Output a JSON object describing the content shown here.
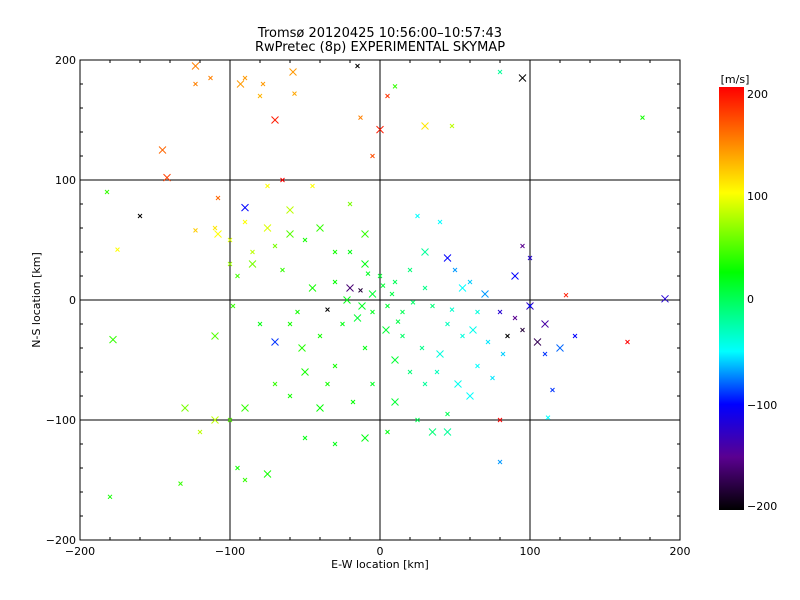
{
  "chart_data": {
    "type": "scatter",
    "title": "Tromsø 20120425 10:56:00–10:57:43",
    "subtitle": "RwPretec (8p) EXPERIMENTAL SKYMAP",
    "xlabel": "E-W location [km]",
    "ylabel": "N-S location [km]",
    "xlim": [
      -200,
      200
    ],
    "ylim": [
      -200,
      200
    ],
    "xticks": [
      -200,
      -100,
      0,
      100,
      200
    ],
    "yticks": [
      -200,
      -100,
      0,
      100,
      200
    ],
    "xtick_labels": [
      "−200",
      "−100",
      "0",
      "100",
      "200"
    ],
    "ytick_labels": [
      "−200",
      "−100",
      "0",
      "100",
      "200"
    ],
    "grid": true,
    "marker": "x",
    "colorbar": {
      "label": "[m/s]",
      "range": [
        -200,
        200
      ],
      "ticks": [
        200,
        100,
        0,
        -100,
        -200
      ],
      "tick_labels": [
        "200",
        "100",
        "0",
        "−100",
        "−200"
      ],
      "stops": [
        {
          "v": -200,
          "color": "#000000"
        },
        {
          "v": -150,
          "color": "#5a0090"
        },
        {
          "v": -100,
          "color": "#0000ff"
        },
        {
          "v": -50,
          "color": "#00ffff"
        },
        {
          "v": 25,
          "color": "#00ff00"
        },
        {
          "v": 100,
          "color": "#ffff00"
        },
        {
          "v": 200,
          "color": "#ff0000"
        }
      ]
    },
    "points_note": "representative sample; columns = [E-W km, N-S km, velocity m/s]",
    "points": [
      [
        -123,
        195,
        150
      ],
      [
        -113,
        185,
        150
      ],
      [
        -123,
        180,
        150
      ],
      [
        -93,
        180,
        140
      ],
      [
        -90,
        185,
        140
      ],
      [
        -78,
        180,
        140
      ],
      [
        -58,
        190,
        140
      ],
      [
        -80,
        170,
        130
      ],
      [
        -57,
        172,
        135
      ],
      [
        -70,
        150,
        190
      ],
      [
        -15,
        195,
        -200
      ],
      [
        -13,
        152,
        150
      ],
      [
        0,
        142,
        190
      ],
      [
        -5,
        120,
        170
      ],
      [
        10,
        178,
        40
      ],
      [
        30,
        145,
        110
      ],
      [
        48,
        145,
        80
      ],
      [
        5,
        170,
        180
      ],
      [
        -142,
        102,
        175
      ],
      [
        -182,
        90,
        40
      ],
      [
        -108,
        85,
        160
      ],
      [
        -90,
        77,
        -100
      ],
      [
        -123,
        58,
        120
      ],
      [
        -110,
        60,
        110
      ],
      [
        -108,
        55,
        100
      ],
      [
        -100,
        50,
        90
      ],
      [
        -85,
        40,
        80
      ],
      [
        -60,
        55,
        50
      ],
      [
        -70,
        45,
        60
      ],
      [
        -50,
        50,
        30
      ],
      [
        -40,
        60,
        40
      ],
      [
        -30,
        40,
        30
      ],
      [
        -20,
        40,
        20
      ],
      [
        -10,
        30,
        20
      ],
      [
        0,
        20,
        10
      ],
      [
        10,
        15,
        0
      ],
      [
        -5,
        5,
        10
      ],
      [
        5,
        -5,
        10
      ],
      [
        15,
        -10,
        0
      ],
      [
        -15,
        -15,
        10
      ],
      [
        -25,
        -20,
        20
      ],
      [
        20,
        25,
        -10
      ],
      [
        30,
        40,
        -20
      ],
      [
        40,
        65,
        -50
      ],
      [
        25,
        70,
        -50
      ],
      [
        45,
        35,
        -100
      ],
      [
        50,
        25,
        -70
      ],
      [
        60,
        15,
        -60
      ],
      [
        70,
        5,
        -70
      ],
      [
        80,
        -10,
        -120
      ],
      [
        90,
        -15,
        -150
      ],
      [
        100,
        -5,
        -130
      ],
      [
        95,
        -25,
        -180
      ],
      [
        85,
        -30,
        -200
      ],
      [
        105,
        -35,
        -170
      ],
      [
        110,
        -45,
        -90
      ],
      [
        115,
        -75,
        -90
      ],
      [
        120,
        -40,
        -80
      ],
      [
        124,
        4,
        190
      ],
      [
        165,
        -35,
        200
      ],
      [
        190,
        1,
        -120
      ],
      [
        175,
        152,
        30
      ],
      [
        80,
        190,
        -20
      ],
      [
        95,
        185,
        -200
      ],
      [
        100,
        -5,
        -100
      ],
      [
        55,
        -30,
        -40
      ],
      [
        40,
        -45,
        -40
      ],
      [
        65,
        -55,
        -50
      ],
      [
        75,
        -65,
        -55
      ],
      [
        60,
        -80,
        -50
      ],
      [
        30,
        -70,
        -20
      ],
      [
        20,
        -60,
        -10
      ],
      [
        10,
        -50,
        10
      ],
      [
        -10,
        -40,
        20
      ],
      [
        -30,
        -55,
        30
      ],
      [
        -50,
        -60,
        30
      ],
      [
        -70,
        -70,
        40
      ],
      [
        -60,
        -80,
        30
      ],
      [
        -90,
        -90,
        40
      ],
      [
        -100,
        -100,
        50
      ],
      [
        -120,
        -110,
        80
      ],
      [
        -130,
        -90,
        60
      ],
      [
        -95,
        -140,
        30
      ],
      [
        -90,
        -150,
        40
      ],
      [
        -75,
        -145,
        30
      ],
      [
        -50,
        -115,
        20
      ],
      [
        -30,
        -120,
        20
      ],
      [
        -10,
        -115,
        20
      ],
      [
        5,
        -110,
        20
      ],
      [
        25,
        -100,
        0
      ],
      [
        45,
        -110,
        -20
      ],
      [
        80,
        -135,
        -70
      ],
      [
        112,
        -98,
        -50
      ],
      [
        -178,
        -33,
        40
      ],
      [
        -180,
        -164,
        30
      ],
      [
        -133,
        -153,
        40
      ],
      [
        -110,
        -100,
        80
      ],
      [
        -160,
        70,
        -200
      ],
      [
        -175,
        42,
        100
      ],
      [
        -145,
        125,
        160
      ],
      [
        -35,
        -8,
        -200
      ],
      [
        -13,
        8,
        -180
      ],
      [
        -70,
        -35,
        -90
      ],
      [
        -98,
        -5,
        40
      ],
      [
        -80,
        -20,
        20
      ],
      [
        -110,
        -30,
        50
      ],
      [
        -40,
        -30,
        30
      ],
      [
        -60,
        -20,
        30
      ],
      [
        90,
        20,
        -100
      ],
      [
        95,
        45,
        -150
      ],
      [
        100,
        35,
        -120
      ],
      [
        110,
        -20,
        -140
      ],
      [
        130,
        -30,
        -100
      ],
      [
        65,
        -10,
        -40
      ],
      [
        55,
        10,
        -50
      ],
      [
        45,
        -20,
        -30
      ],
      [
        35,
        -5,
        -10
      ],
      [
        -20,
        10,
        -160
      ],
      [
        15,
        -30,
        -5
      ],
      [
        -5,
        -70,
        15
      ],
      [
        -40,
        -90,
        25
      ],
      [
        -75,
        95,
        100
      ],
      [
        -65,
        100,
        200
      ],
      [
        -60,
        75,
        80
      ],
      [
        -45,
        95,
        100
      ],
      [
        -20,
        80,
        60
      ],
      [
        -10,
        55,
        40
      ],
      [
        45,
        -95,
        0
      ],
      [
        80,
        -100,
        200
      ],
      [
        35,
        -110,
        -10
      ],
      [
        -5,
        -10,
        15
      ],
      [
        8,
        5,
        5
      ],
      [
        -12,
        -5,
        15
      ],
      [
        2,
        12,
        10
      ],
      [
        12,
        -18,
        5
      ],
      [
        -22,
        0,
        20
      ],
      [
        22,
        -2,
        -5
      ],
      [
        -8,
        22,
        15
      ],
      [
        4,
        -25,
        10
      ],
      [
        -30,
        15,
        25
      ],
      [
        30,
        10,
        -15
      ],
      [
        -45,
        10,
        30
      ],
      [
        48,
        -8,
        -35
      ],
      [
        -55,
        -10,
        30
      ],
      [
        62,
        -25,
        -45
      ],
      [
        72,
        -35,
        -55
      ],
      [
        82,
        -45,
        -60
      ],
      [
        -85,
        30,
        60
      ],
      [
        -95,
        20,
        45
      ],
      [
        -65,
        25,
        40
      ],
      [
        -75,
        60,
        90
      ],
      [
        -90,
        65,
        100
      ],
      [
        -100,
        30,
        70
      ],
      [
        -52,
        -40,
        35
      ],
      [
        -35,
        -70,
        30
      ],
      [
        -18,
        -85,
        25
      ],
      [
        10,
        -85,
        10
      ],
      [
        28,
        -40,
        -15
      ],
      [
        38,
        -60,
        -30
      ],
      [
        52,
        -70,
        -45
      ]
    ]
  }
}
